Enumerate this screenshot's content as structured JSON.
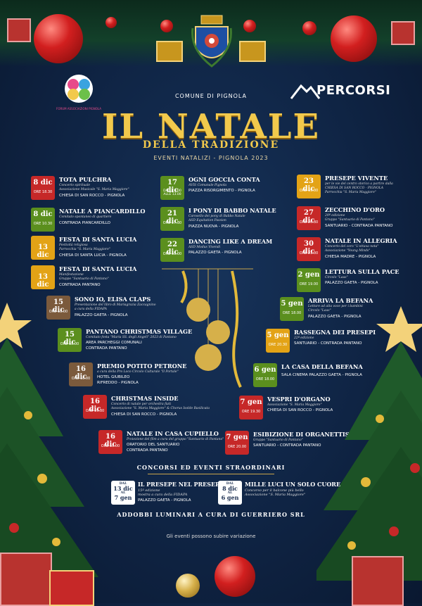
{
  "header": {
    "comune": "COMUNE DI PIGNOLA",
    "title": "IL NATALE",
    "subtitle": "DELLA TRADIZIONE",
    "eventi": "EVENTI NATALIZI - PIGNOLA 2023",
    "percorsi": "PERCORSI",
    "left_logo_text": "FORUM ASSOCIAZIONI PIGNOLA"
  },
  "colors": {
    "accent_gold": "#f2c94c",
    "red": "#c62828",
    "green": "#5b8f1e",
    "yellow": "#e3a316",
    "brown": "#7b5a3c"
  },
  "left_events": [
    {
      "date": "8 dic",
      "time": "ORE 18.30",
      "title": "TOTA PULCHRA",
      "desc1": "Concerto spirituale",
      "desc2": "Associazione Musicale \"S. Maria Maggiore\"",
      "place": "CHIESA DI SAN ROCCO - PIGNOLA",
      "color": "red"
    },
    {
      "date": "8 dic",
      "time": "ORE 10.30",
      "title": "NATALE A PIANCARDILLO",
      "desc1": "Comitato spontaneo di quartiere",
      "desc2": "",
      "place": "CONTRADA PIANCARDILLO",
      "color": "green"
    },
    {
      "date": "13 dic",
      "time": "",
      "title": "FESTA DI SANTA LUCIA",
      "desc1": "Festività religiosa",
      "desc2": "Parrocchia \"S. Maria Maggiore\"",
      "place": "CHIESA DI SANTA LUCIA - PIGNOLA",
      "color": "yellow"
    },
    {
      "date": "13 dic",
      "time": "",
      "title": "FESTA DI SANTA LUCIA",
      "desc1": "Manifestazione",
      "desc2": "Gruppo \"Santuario di Pantano\"",
      "place": "CONTRADA PANTANO",
      "color": "yellow"
    },
    {
      "date": "15 dic",
      "time": "ORE 18.00",
      "title": "SONO IO, ELISA CLAPS",
      "desc1": "Presentazione del libro di Mariagrazia Zaccagnino",
      "desc2": "a cura della FIDAPA",
      "place": "PALAZZO GAETA - PIGNOLA",
      "color": "brown"
    },
    {
      "date": "15 dic",
      "time": "ORE 18.00",
      "title": "PANTANO CHRISTMAS VILLAGE",
      "desc1": "Comitato festa \"Maria SS. degli Angeli\" 2023 di Pantano",
      "desc2": "AREA PARCHEGGI COMUNALI",
      "place": "CONTRADA PANTANO",
      "color": "green"
    },
    {
      "date": "16 dic",
      "time": "ORE 18.00",
      "title": "PREMIO POTITO PETRONE",
      "desc1": "a cura della Pro Loco Circolo Culturale \"Il Portale\"",
      "desc2": "HOTEL GIUBILEO",
      "place": "RIFREDDO - PIGNOLA",
      "color": "brown"
    },
    {
      "date": "16 dic",
      "time": "ORE 19.30",
      "title": "CHRISTMAS INSIDE",
      "desc1": "Concerto di natale per orchestra fiati",
      "desc2": "Associazione \"S. Maria Maggiore\" & Chorus Isolde Basilicata",
      "place": "CHIESA DI SAN ROCCO - PIGNOLA",
      "color": "red"
    },
    {
      "date": "16 dic",
      "time": "ORE 18.00",
      "title": "NATALE IN CASA CUPIELLO",
      "desc1": "Proiezione del film a cura del gruppo \"Santuario di Pantano\"",
      "desc2": "ORATORIO DEL SANTUARIO",
      "place": "CONTRADA PANTANO",
      "color": "red"
    }
  ],
  "middle_events": [
    {
      "date": "17 dic",
      "time": "DALLE 9.00 ALLE 13.00",
      "title": "OGNI GOCCIA CONTA",
      "desc1": "AVIS Comunale Pignola",
      "desc2": "",
      "place": "PIAZZA RISORGIMENTO - PIGNOLA",
      "color": "green"
    },
    {
      "date": "21 dic",
      "time": "ORE 17.30",
      "title": "I PONY DI BABBO NATALE",
      "desc1": "Carosello dei pony di Babbo Natale",
      "desc2": "ASD Equitation Passion",
      "place": "PIAZZA NUOVA - PIGNOLA",
      "color": "green"
    },
    {
      "date": "22 dic",
      "time": "ORE 18.00",
      "title": "DANCING LIKE A DREAM",
      "desc1": "ASD Modus Vivendi",
      "desc2": "",
      "place": "PALAZZO GAETA - PIGNOLA",
      "color": "green"
    }
  ],
  "right_events": [
    {
      "date": "23 dic",
      "time": "ORE 19.00",
      "title": "PRESEPE VIVENTE",
      "desc1": "per le vie del centro storico a partire dalla",
      "desc2": "CHIESA DI SAN ROCCO - PIGNOLA",
      "place": "Parrocchia \"S. Maria Maggiore\"",
      "color": "yellow"
    },
    {
      "date": "27 dic",
      "time": "ORE 20.30",
      "title": "ZECCHINO D'ORO",
      "desc1": "29ª edizione",
      "desc2": "Gruppo \"Santuario di Pantano\"",
      "place": "SANTUARIO - CONTRADA PANTANO",
      "color": "red"
    },
    {
      "date": "30 dic",
      "time": "ORE 21.00",
      "title": "NATALE IN ALLEGRIA",
      "desc1": "Concerto del coro \"L'ottava nota\"",
      "desc2": "Associazione \"Young Minds\"",
      "place": "CHIESA MADRE - PIGNOLA",
      "color": "red"
    },
    {
      "date": "2 gen",
      "time": "ORE 19.00",
      "title": "LETTURA SULLA PACE",
      "desc1": "Circolo \"Laas\"",
      "desc2": "",
      "place": "PALAZZO GAETA - PIGNOLA",
      "color": "green"
    },
    {
      "date": "5 gen",
      "time": "ORE 18.00",
      "title": "ARRIVA LA BEFANA",
      "desc1": "Letture ad alta voce per i bambini",
      "desc2": "Circolo \"Laas\"",
      "place": "PALAZZO GAETA - PIGNOLA",
      "color": "green"
    },
    {
      "date": "5 gen",
      "time": "ORE 20.30",
      "title": "RASSEGNA DEI PRESEPI",
      "desc1": "22ª edizione",
      "desc2": "",
      "place": "SANTUARIO - CONTRADA PANTANO",
      "color": "yellow"
    },
    {
      "date": "6 gen",
      "time": "ORE 18.00",
      "title": "LA CASA DELLA BEFANA",
      "desc1": "",
      "desc2": "",
      "place": "SALA CINEMA PALAZZO GAETA - PIGNOLA",
      "color": "green"
    },
    {
      "date": "7 gen",
      "time": "ORE 19.30",
      "title": "VESPRI D'ORGANO",
      "desc1": "Associazione \"S. Maria Maggiore\"",
      "desc2": "",
      "place": "CHIESA DI SAN ROCCO - PIGNOLA",
      "color": "red"
    },
    {
      "date": "7 gen",
      "time": "ORE 20.00",
      "title": "ESIBIZIONE DI ORGANETTISTI",
      "desc1": "Gruppo \"Santuario di Pantano\"",
      "desc2": "",
      "place": "SANTUARIO - CONTRADA PANTANO",
      "color": "red"
    }
  ],
  "special": {
    "section_title": "CONCORSI ED EVENTI STRAORDINARI",
    "items": [
      {
        "from": "DAL",
        "d1": "13 dic",
        "to": "AL",
        "d2": "7 gen",
        "title": "IL PRESEPE NEL PRESEPE",
        "desc1": "15ª edizione",
        "desc2": "mostra a cura della FIDAPA",
        "place": "PALAZZO GAETA - PIGNOLA"
      },
      {
        "from": "DAL",
        "d1": "8 dic",
        "to": "AL",
        "d2": "6 gen",
        "title": "MILLE LUCI UN SOLO CUORE",
        "desc1": "Concorso per il balcone più bello",
        "desc2": "Associazione \"S. Maria Maggiore\"",
        "place": ""
      }
    ]
  },
  "footer": {
    "addobbi": "ADDOBBI LUMINARI A CURA DI GUERRIERO SRL",
    "variazione": "Gli eventi possono subire variazione"
  }
}
